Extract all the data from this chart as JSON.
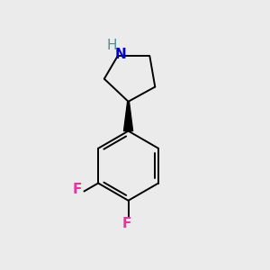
{
  "background_color": "#ebebeb",
  "bond_color": "#000000",
  "N_color": "#0000cd",
  "H_color": "#4a9090",
  "F_color": "#e832a0",
  "N_label": "N",
  "H_label": "H",
  "F_label": "F",
  "font_size_NH": 11,
  "font_size_F": 11,
  "wedge_color": "#000000",
  "lw": 1.4
}
